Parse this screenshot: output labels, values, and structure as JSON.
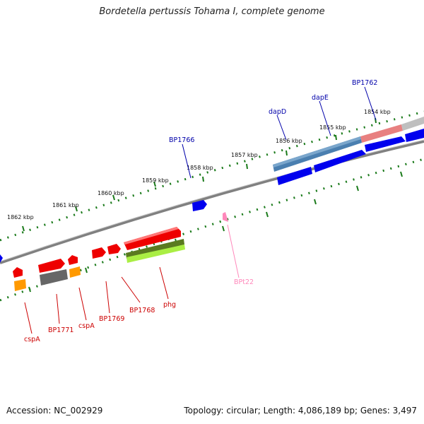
{
  "title": "Bordetella pertussis Tohama I, complete genome",
  "footer": {
    "accession": "Accession: NC_002929",
    "summary": "Topology: circular; Length: 4,086,189 bp; Genes: 3,497"
  },
  "colors": {
    "backbone": "#808080",
    "tick": "#1a7a1a",
    "blue_gene": "#0000ee",
    "blue_label": "#0000aa",
    "red_gene": "#ee0000",
    "red_label": "#cc0000",
    "pink_label": "#ff88bb",
    "steel": "#4a7fb0",
    "salmon": "#e88080",
    "grey_gene": "#9a9a9a",
    "dark_grey": "#666666",
    "orange": "#ff9900",
    "olive": "#5a7a20",
    "lime": "#aaee44"
  },
  "scale_labels": [
    "1862 kbp",
    "1861 kbp",
    "1860 kbp",
    "1859 kbp",
    "1858 kbp",
    "1857 kbp",
    "1856 kbp",
    "1855 kbp",
    "1854 kbp"
  ],
  "gene_labels": {
    "BP1762": "BP1762",
    "dapE": "dapE",
    "dapD": "dapD",
    "BP1766": "BP1766",
    "BPt22": "BPt22",
    "phg": "phg",
    "BP1768": "BP1768",
    "BP1769": "BP1769",
    "cspA_right": "cspA",
    "BP1771": "BP1771",
    "cspA_left": "cspA"
  }
}
